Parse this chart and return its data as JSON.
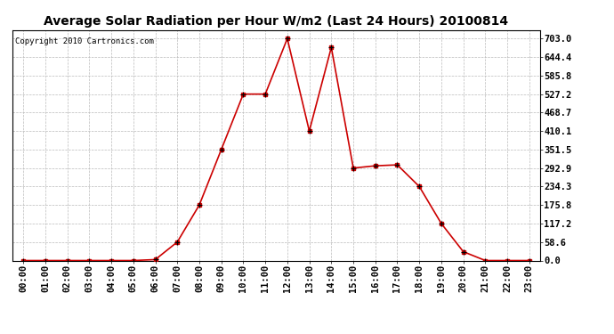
{
  "title": "Average Solar Radiation per Hour W/m2 (Last 24 Hours) 20100814",
  "copyright": "Copyright 2010 Cartronics.com",
  "hours": [
    "00:00",
    "01:00",
    "02:00",
    "03:00",
    "04:00",
    "05:00",
    "06:00",
    "07:00",
    "08:00",
    "09:00",
    "10:00",
    "11:00",
    "12:00",
    "13:00",
    "14:00",
    "15:00",
    "16:00",
    "17:00",
    "18:00",
    "19:00",
    "20:00",
    "21:00",
    "22:00",
    "23:00"
  ],
  "values": [
    0.0,
    0.0,
    0.0,
    0.0,
    0.0,
    0.0,
    3.0,
    58.6,
    175.8,
    351.5,
    527.2,
    527.2,
    703.0,
    410.1,
    675.0,
    292.9,
    300.0,
    303.0,
    234.3,
    117.2,
    28.0,
    0.0,
    0.0,
    0.0
  ],
  "line_color": "#cc0000",
  "marker_color": "#000000",
  "bg_color": "#ffffff",
  "plot_bg_color": "#ffffff",
  "grid_color": "#bbbbbb",
  "title_fontsize": 10,
  "copyright_fontsize": 6.5,
  "tick_fontsize": 7.5,
  "ytick_values": [
    0.0,
    58.6,
    117.2,
    175.8,
    234.3,
    292.9,
    351.5,
    410.1,
    468.7,
    527.2,
    585.8,
    644.4,
    703.0
  ],
  "ylim": [
    0,
    730
  ],
  "xlim": [
    -0.5,
    23.5
  ],
  "border_color": "#000000",
  "figwidth": 6.9,
  "figheight": 3.75,
  "dpi": 100
}
